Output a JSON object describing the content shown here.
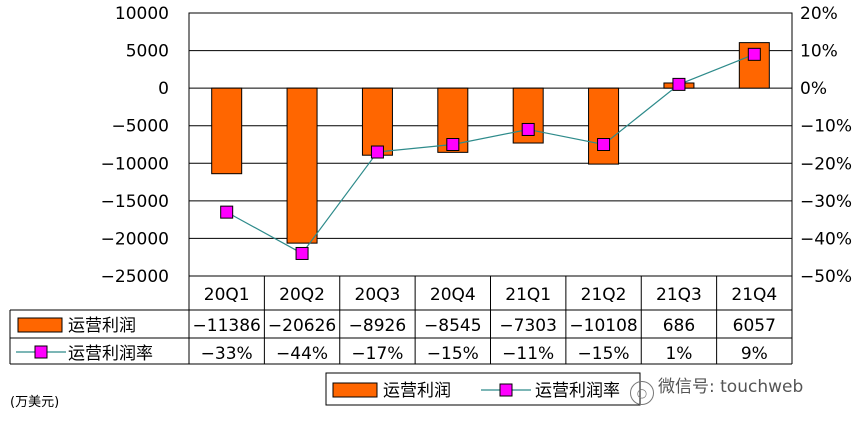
{
  "chart_data": {
    "type": "bar+line",
    "categories": [
      "20Q1",
      "20Q2",
      "20Q3",
      "20Q4",
      "21Q1",
      "21Q2",
      "21Q3",
      "21Q4"
    ],
    "series": [
      {
        "name": "运营利润",
        "type": "bar",
        "axis": "left",
        "values": [
          -11386,
          -20626,
          -8926,
          -8545,
          -7303,
          -10108,
          686,
          6057
        ],
        "color": "#FF6600"
      },
      {
        "name": "运营利润率",
        "type": "line",
        "axis": "right",
        "values": [
          -33,
          -44,
          -17,
          -15,
          -11,
          -15,
          1,
          9
        ],
        "color": "#FF00FF",
        "line_color": "#2E8B8B"
      }
    ],
    "row_labels": {
      "bar": "运营利润",
      "line": "运营利润率"
    },
    "data_table": {
      "bar": [
        "−11386",
        "−20626",
        "−8926",
        "−8545",
        "−7303",
        "−10108",
        "686",
        "6057"
      ],
      "line": [
        "−33%",
        "−44%",
        "−17%",
        "−15%",
        "−11%",
        "−15%",
        "1%",
        "9%"
      ]
    },
    "left_axis": {
      "ylim": [
        -25000,
        10000
      ],
      "step": 5000,
      "ticks": [
        "10000",
        "5000",
        "0",
        "−5000",
        "−10000",
        "−15000",
        "−20000",
        "−25000"
      ]
    },
    "right_axis": {
      "ylim": [
        -50,
        20
      ],
      "step": 10,
      "ticks": [
        "20%",
        "10%",
        "0%",
        "−10%",
        "−20%",
        "−30%",
        "−40%",
        "−50%"
      ]
    },
    "grid": true,
    "legend": {
      "placement": "bottom-center",
      "bar_label": "运营利润",
      "line_label": "运营利润率"
    },
    "unit": "(万美元)"
  },
  "watermark": {
    "text": "微信号: touchweb",
    "icon": "wechat-icon"
  }
}
